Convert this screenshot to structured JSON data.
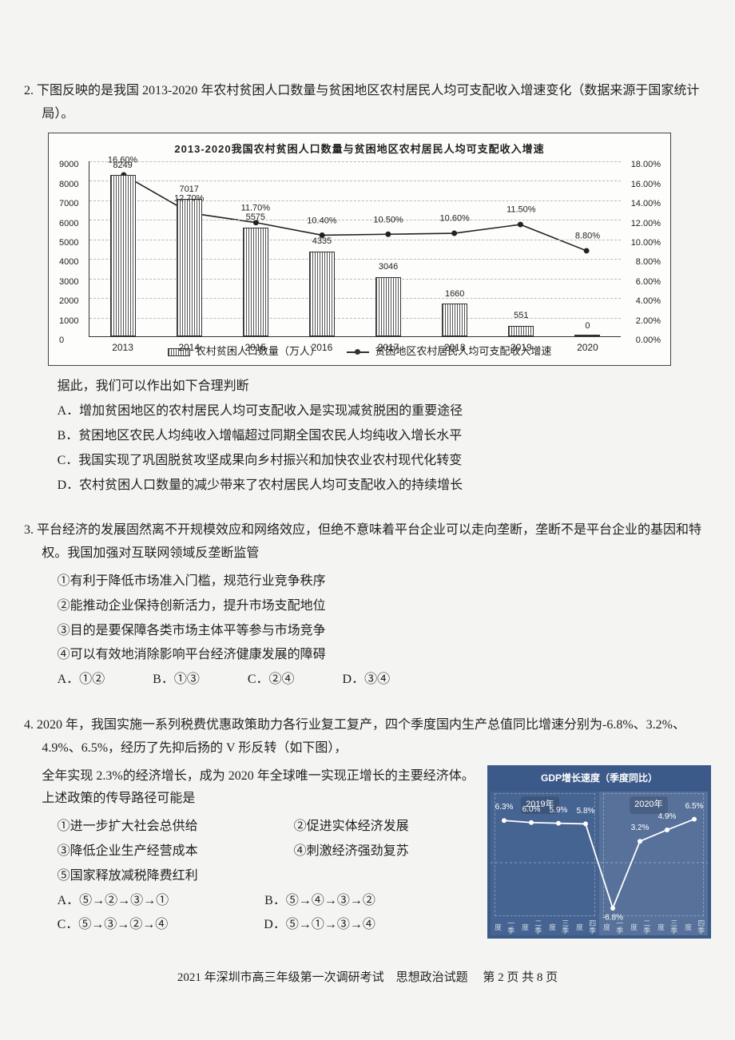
{
  "q2": {
    "number": "2.",
    "stem": "下图反映的是我国 2013-2020 年农村贫困人口数量与贫困地区农村居民人均可支配收入增速变化（数据来源于国家统计局）。",
    "post_chart_line": "据此，我们可以作出如下合理判断",
    "options": {
      "A": "A．增加贫困地区的农村居民人均可支配收入是实现减贫脱困的重要途径",
      "B": "B．贫困地区农民人均纯收入增幅超过同期全国农民人均纯收入增长水平",
      "C": "C．我国实现了巩固脱贫攻坚成果向乡村振兴和加快农业农村现代化转变",
      "D": "D．农村贫困人口数量的减少带来了农村居民人均可支配收入的持续增长"
    }
  },
  "chart1": {
    "title": "2013-2020我国农村贫困人口数量与贫困地区农村居民人均可支配收入增速",
    "years": [
      "2013",
      "2014",
      "2015",
      "2016",
      "2017",
      "2018",
      "2019",
      "2020"
    ],
    "bar_values": [
      8249,
      7017,
      5575,
      4335,
      3046,
      1660,
      551,
      0
    ],
    "bar_max": 9000,
    "y1_ticks": [
      0,
      1000,
      2000,
      3000,
      4000,
      5000,
      6000,
      7000,
      8000,
      9000
    ],
    "line_values": [
      16.6,
      12.7,
      11.7,
      10.4,
      10.5,
      10.6,
      11.5,
      8.8
    ],
    "line_labels": [
      "16.60%",
      "12.70%",
      "11.70%",
      "10.40%",
      "10.50%",
      "10.60%",
      "11.50%",
      "8.80%"
    ],
    "line_max": 18,
    "y2_ticks": [
      "0.00%",
      "2.00%",
      "4.00%",
      "6.00%",
      "8.00%",
      "10.00%",
      "12.00%",
      "14.00%",
      "16.00%",
      "18.00%"
    ],
    "legend_bar": "农村贫困人口数量（万人）",
    "legend_line": "贫困地区农村居民人均可支配收入增速",
    "bar_fill": "repeating-linear-gradient(90deg,#555 0 1px,#fff 1px 3px)",
    "line_color": "#222"
  },
  "q3": {
    "number": "3.",
    "stem1": "平台经济的发展固然离不开规模效应和网络效应，但绝不意味着平台企业可以走向垄断，垄断不是平台企业的基因和特权。我国加强对互联网领域反垄断监管",
    "items": [
      "①有利于降低市场准入门槛，规范行业竞争秩序",
      "②能推动企业保持创新活力，提升市场支配地位",
      "③目的是要保障各类市场主体平等参与市场竞争",
      "④可以有效地消除影响平台经济健康发展的障碍"
    ],
    "options": {
      "A": "A．①②",
      "B": "B．①③",
      "C": "C．②④",
      "D": "D．③④"
    }
  },
  "q4": {
    "number": "4.",
    "stem1": "2020 年，我国实施一系列税费优惠政策助力各行业复工复产，四个季度国内生产总值同比增速分别为-6.8%、3.2%、4.9%、6.5%，经历了先抑后扬的 V 形反转（如下图），",
    "stem2": "全年实现 2.3%的经济增长，成为 2020 年全球唯一实现正增长的主要经济体。上述政策的传导路径可能是",
    "items_left": [
      "①进一步扩大社会总供给",
      "③降低企业生产经营成本",
      "⑤国家释放减税降费红利"
    ],
    "items_right": [
      "②促进实体经济发展",
      "④刺激经济强劲复苏",
      ""
    ],
    "options": {
      "A": "A．⑤→②→③→①",
      "B": "B．⑤→④→③→②",
      "C": "C．⑤→③→②→④",
      "D": "D．⑤→①→③→④"
    }
  },
  "chart2": {
    "title": "GDP增长速度（季度同比）",
    "year_labels": [
      "2019年",
      "2020年"
    ],
    "x_labels": [
      "一季度",
      "二季度",
      "三季度",
      "四季度",
      "一季度",
      "二季度",
      "三季度",
      "四季度"
    ],
    "values": [
      6.3,
      6.0,
      5.9,
      5.8,
      -6.8,
      3.2,
      4.9,
      6.5
    ],
    "value_labels": [
      "6.3%",
      "6.0%",
      "5.9%",
      "5.8%",
      "-6.8%",
      "3.2%",
      "4.9%",
      "6.5%"
    ],
    "ymin": -8,
    "ymax": 8,
    "bg_color": "#3b5a8a",
    "line_color": "#ffffff"
  },
  "footer": {
    "left": "2021 年深圳市高三年级第一次调研考试　思想政治试题",
    "right": "第 2 页 共 8 页"
  }
}
